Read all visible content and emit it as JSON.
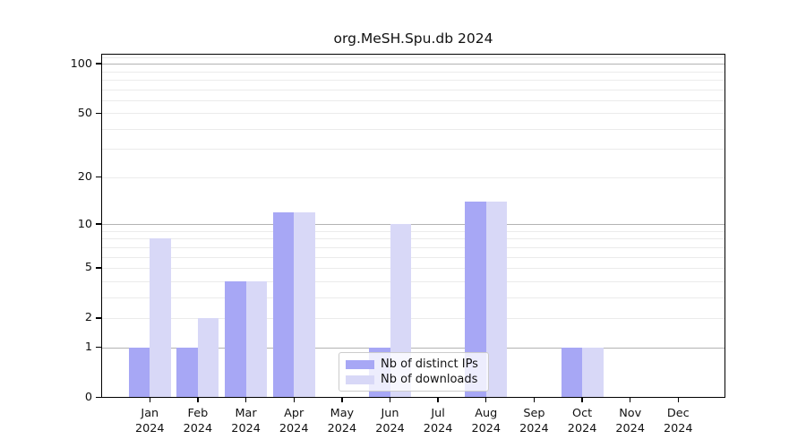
{
  "title": "org.MeSH.Spu.db 2024",
  "colors": {
    "distinct_ips": "#a7a7f5",
    "downloads": "#d8d8f7",
    "grid_major": "#b3b3b3",
    "grid_minor": "#ebebeb",
    "axis": "#000000"
  },
  "legend": {
    "items": [
      {
        "label": "Nb of distinct IPs"
      },
      {
        "label": "Nb of downloads"
      }
    ]
  },
  "chart_data": {
    "type": "bar",
    "title": "org.MeSH.Spu.db 2024",
    "categories": [
      "Jan",
      "Feb",
      "Mar",
      "Apr",
      "May",
      "Jun",
      "Jul",
      "Aug",
      "Sep",
      "Oct",
      "Nov",
      "Dec"
    ],
    "category_year": "2024",
    "series": [
      {
        "name": "Nb of distinct IPs",
        "color": "#a7a7f5",
        "values": [
          1,
          1,
          4,
          12,
          0,
          1,
          0,
          14,
          0,
          1,
          0,
          0
        ]
      },
      {
        "name": "Nb of downloads",
        "color": "#d8d8f7",
        "values": [
          8,
          2,
          4,
          12,
          0,
          10,
          0,
          14,
          0,
          1,
          0,
          0
        ]
      }
    ],
    "xlabel": "",
    "ylabel": "",
    "y_axis": {
      "scale": "log10(value+1)",
      "tick_values": [
        100,
        50,
        20,
        10,
        5,
        2,
        1,
        0
      ],
      "major_gridline_values": [
        1,
        10,
        100
      ],
      "minor_gridline_values": [
        2,
        3,
        4,
        5,
        6,
        7,
        8,
        9,
        20,
        30,
        40,
        50,
        60,
        70,
        80,
        90,
        110
      ],
      "ylim": [
        0,
        115
      ]
    },
    "grid": true,
    "legend_position": "bottom-center"
  }
}
